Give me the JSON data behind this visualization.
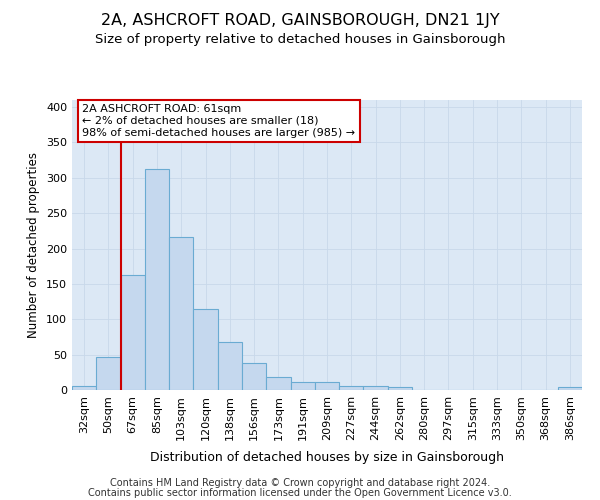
{
  "title": "2A, ASHCROFT ROAD, GAINSBOROUGH, DN21 1JY",
  "subtitle": "Size of property relative to detached houses in Gainsborough",
  "xlabel": "Distribution of detached houses by size in Gainsborough",
  "ylabel": "Number of detached properties",
  "categories": [
    "32sqm",
    "50sqm",
    "67sqm",
    "85sqm",
    "103sqm",
    "120sqm",
    "138sqm",
    "156sqm",
    "173sqm",
    "191sqm",
    "209sqm",
    "227sqm",
    "244sqm",
    "262sqm",
    "280sqm",
    "297sqm",
    "315sqm",
    "333sqm",
    "350sqm",
    "368sqm",
    "386sqm"
  ],
  "bar_heights": [
    5,
    47,
    163,
    312,
    216,
    114,
    68,
    38,
    18,
    12,
    12,
    5,
    5,
    4,
    0,
    0,
    0,
    0,
    0,
    0,
    4
  ],
  "bar_color": "#c5d8ee",
  "bar_edge_color": "#6aabd2",
  "grid_color": "#c8d8ea",
  "background_color": "#dce8f5",
  "annotation_text_line1": "2A ASHCROFT ROAD: 61sqm",
  "annotation_text_line2": "← 2% of detached houses are smaller (18)",
  "annotation_text_line3": "98% of semi-detached houses are larger (985) →",
  "annotation_box_facecolor": "#ffffff",
  "annotation_box_edgecolor": "#cc0000",
  "redline_x": 2.0,
  "footer_line1": "Contains HM Land Registry data © Crown copyright and database right 2024.",
  "footer_line2": "Contains public sector information licensed under the Open Government Licence v3.0.",
  "ylim": [
    0,
    410
  ],
  "yticks": [
    0,
    50,
    100,
    150,
    200,
    250,
    300,
    350,
    400
  ],
  "title_fontsize": 11.5,
  "subtitle_fontsize": 9.5,
  "xlabel_fontsize": 9,
  "ylabel_fontsize": 8.5,
  "tick_fontsize": 8,
  "annotation_fontsize": 8,
  "footer_fontsize": 7
}
